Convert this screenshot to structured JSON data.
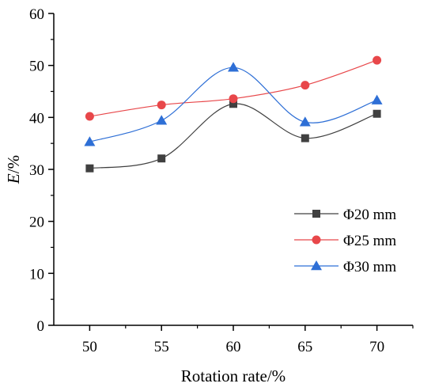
{
  "chart_data": {
    "type": "line",
    "title": "",
    "xlabel": "Rotation rate/%",
    "ylabel": "E/%",
    "x": [
      50,
      55,
      60,
      65,
      70
    ],
    "xlim": [
      47.5,
      72.5
    ],
    "ylim": [
      0,
      60
    ],
    "xticks": [
      50,
      55,
      60,
      65,
      70
    ],
    "yticks": [
      0,
      10,
      20,
      30,
      40,
      50,
      60
    ],
    "grid": false,
    "legend_position": "lower-right",
    "smooth": true,
    "series": [
      {
        "name": "Φ20 mm",
        "values": [
          30.2,
          32.1,
          42.6,
          36.0,
          40.7
        ],
        "color": "#404040",
        "marker": "square"
      },
      {
        "name": "Φ25 mm",
        "values": [
          40.2,
          42.4,
          43.6,
          46.2,
          51.0
        ],
        "color": "#e8474a",
        "marker": "circle"
      },
      {
        "name": "Φ30 mm",
        "values": [
          35.3,
          39.4,
          49.6,
          39.1,
          43.3
        ],
        "color": "#2e6fd6",
        "marker": "triangle"
      }
    ]
  }
}
